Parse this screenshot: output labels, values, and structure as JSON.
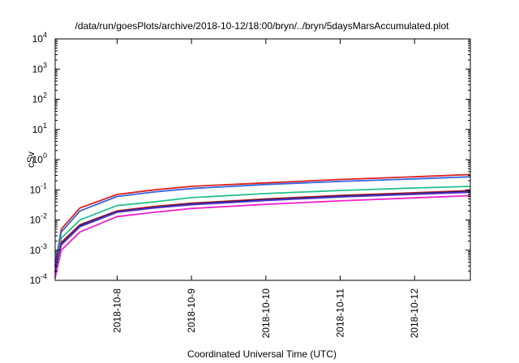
{
  "chart_data": {
    "type": "line",
    "title": "/data/run/goesPlots/archive/2018-10-12/18:00/bryn/../bryn/5daysMarsAccumulated.plot",
    "xlabel": "Coordinated Universal Time (UTC)",
    "ylabel": "cSv",
    "y_scale": "log",
    "ylim": [
      0.0001,
      10000
    ],
    "xlim": [
      "2018-10-07 04:00",
      "2018-10-12 18:00"
    ],
    "x_ticks": [
      "2018-10-8",
      "2018-10-9",
      "2018-10-10",
      "2018-10-11",
      "2018-10-12"
    ],
    "y_ticks": [
      {
        "base": "10",
        "exp": "-4"
      },
      {
        "base": "10",
        "exp": "-3"
      },
      {
        "base": "10",
        "exp": "-2"
      },
      {
        "base": "10",
        "exp": "-1"
      },
      {
        "base": "10",
        "exp": "0"
      },
      {
        "base": "10",
        "exp": "1"
      },
      {
        "base": "10",
        "exp": "2"
      },
      {
        "base": "10",
        "exp": "3"
      },
      {
        "base": "10",
        "exp": "4"
      }
    ],
    "grid": false,
    "series": [
      {
        "color": "#dd1f1f",
        "x": [
          "2018-10-07 04:00",
          "2018-10-07 06:00",
          "2018-10-07 12:00",
          "2018-10-08 00:00",
          "2018-10-08 12:00",
          "2018-10-09 00:00",
          "2018-10-10 00:00",
          "2018-10-11 00:00",
          "2018-10-12 00:00",
          "2018-10-12 18:00"
        ],
        "values": [
          0.0003,
          0.005,
          0.025,
          0.07,
          0.1,
          0.13,
          0.17,
          0.22,
          0.27,
          0.32
        ]
      },
      {
        "color": "#3366dd",
        "x": [
          "2018-10-07 04:00",
          "2018-10-07 06:00",
          "2018-10-07 12:00",
          "2018-10-08 00:00",
          "2018-10-08 12:00",
          "2018-10-09 00:00",
          "2018-10-10 00:00",
          "2018-10-11 00:00",
          "2018-10-12 00:00",
          "2018-10-12 18:00"
        ],
        "values": [
          0.0003,
          0.004,
          0.02,
          0.06,
          0.085,
          0.11,
          0.15,
          0.19,
          0.23,
          0.27
        ]
      },
      {
        "color": "#22c08a",
        "x": [
          "2018-10-07 04:00",
          "2018-10-07 06:00",
          "2018-10-07 12:00",
          "2018-10-08 00:00",
          "2018-10-08 12:00",
          "2018-10-09 00:00",
          "2018-10-10 00:00",
          "2018-10-11 00:00",
          "2018-10-12 00:00",
          "2018-10-12 18:00"
        ],
        "values": [
          0.0002,
          0.0025,
          0.01,
          0.03,
          0.04,
          0.055,
          0.075,
          0.095,
          0.115,
          0.13
        ]
      },
      {
        "color": "#c01a1a",
        "x": [
          "2018-10-07 04:00",
          "2018-10-07 06:00",
          "2018-10-07 12:00",
          "2018-10-08 00:00",
          "2018-10-08 12:00",
          "2018-10-09 00:00",
          "2018-10-10 00:00",
          "2018-10-11 00:00",
          "2018-10-12 00:00",
          "2018-10-12 18:00"
        ],
        "values": [
          0.0002,
          0.0018,
          0.007,
          0.02,
          0.028,
          0.036,
          0.05,
          0.065,
          0.08,
          0.095
        ]
      },
      {
        "color": "#222266",
        "x": [
          "2018-10-07 04:00",
          "2018-10-07 06:00",
          "2018-10-07 12:00",
          "2018-10-08 00:00",
          "2018-10-08 12:00",
          "2018-10-09 00:00",
          "2018-10-10 00:00",
          "2018-10-11 00:00",
          "2018-10-12 00:00",
          "2018-10-12 18:00"
        ],
        "values": [
          0.0002,
          0.0016,
          0.0065,
          0.019,
          0.026,
          0.034,
          0.047,
          0.061,
          0.075,
          0.088
        ]
      },
      {
        "color": "#5533cc",
        "x": [
          "2018-10-07 04:00",
          "2018-10-07 06:00",
          "2018-10-07 12:00",
          "2018-10-08 00:00",
          "2018-10-08 12:00",
          "2018-10-09 00:00",
          "2018-10-10 00:00",
          "2018-10-11 00:00",
          "2018-10-12 00:00",
          "2018-10-12 18:00"
        ],
        "values": [
          0.00018,
          0.0015,
          0.006,
          0.018,
          0.025,
          0.032,
          0.044,
          0.058,
          0.071,
          0.083
        ]
      },
      {
        "color": "#ee22cc",
        "x": [
          "2018-10-07 04:00",
          "2018-10-07 06:00",
          "2018-10-07 12:00",
          "2018-10-08 00:00",
          "2018-10-08 12:00",
          "2018-10-09 00:00",
          "2018-10-10 00:00",
          "2018-10-11 00:00",
          "2018-10-12 00:00",
          "2018-10-12 18:00"
        ],
        "values": [
          0.00012,
          0.001,
          0.004,
          0.013,
          0.018,
          0.024,
          0.033,
          0.043,
          0.054,
          0.064
        ]
      }
    ]
  }
}
